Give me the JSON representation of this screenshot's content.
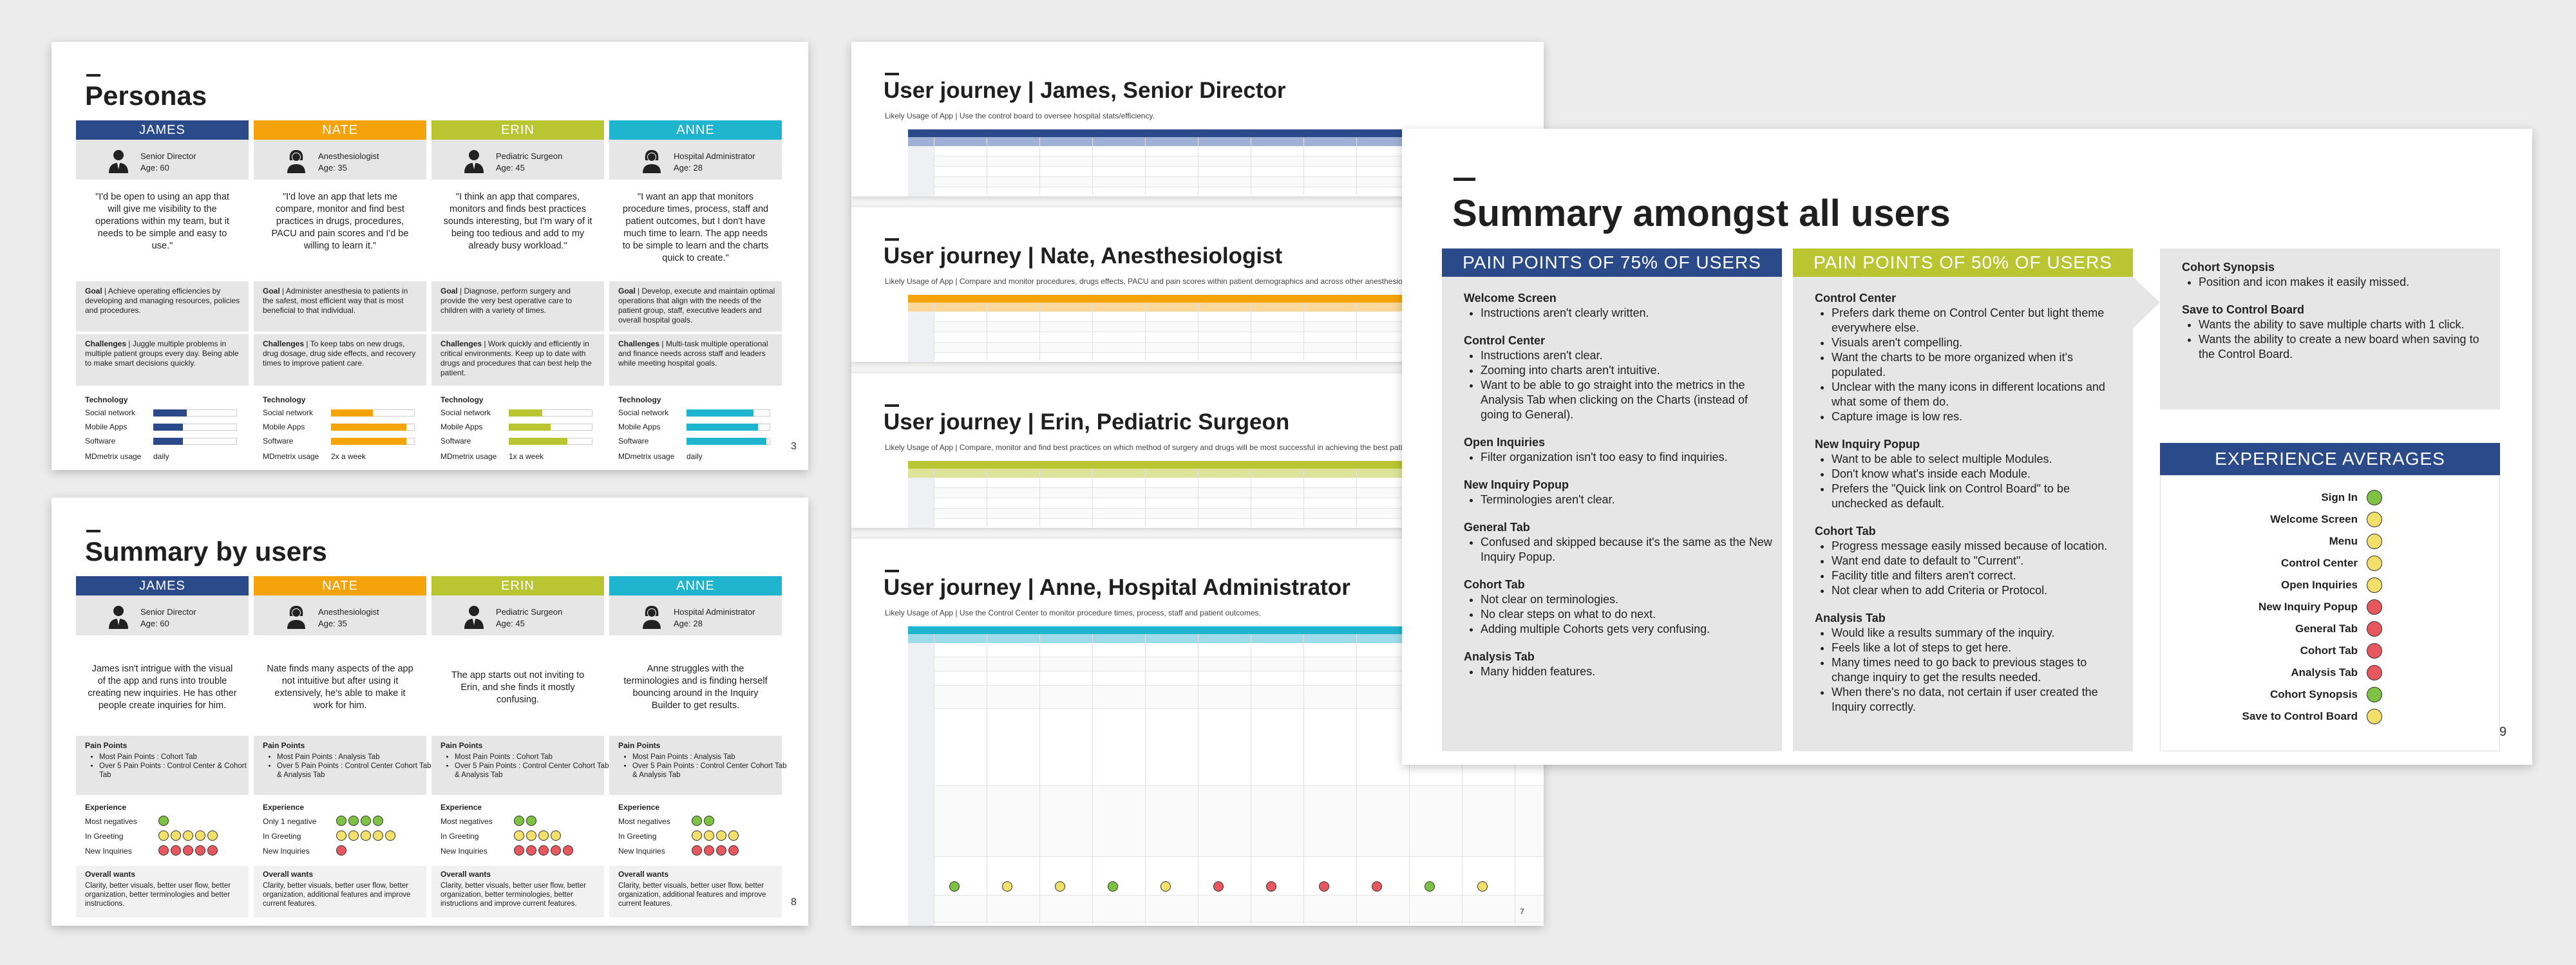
{
  "slide3": {
    "title": "Personas",
    "page": "3",
    "personas": [
      {
        "name": "JAMES",
        "role": "Senior Director",
        "age": "Age: 60",
        "color": "#2a4a8a",
        "quote": "\"I'd be open to using an app that will give me visibility to the operations within my team, but it needs to be simple and easy to use.\"",
        "goal_label": "Goal",
        "goal": "Achieve operating efficiencies by developing and managing resources, policies and procedures.",
        "ch_label": "Challenges",
        "challenges": "Juggle multiple problems in multiple patient groups every day. Being able to make smart decisions quickly.",
        "tech_label": "Technology",
        "tech": [
          {
            "k": "Social network",
            "v": 0.4
          },
          {
            "k": "Mobile Apps",
            "v": 0.35
          },
          {
            "k": "Software",
            "v": 0.35
          }
        ],
        "md_label": "MDmetrix usage",
        "md": "daily"
      },
      {
        "name": "NATE",
        "role": "Anesthesiologist",
        "age": "Age: 35",
        "color": "#f5a30a",
        "quote": "\"I'd love an app that lets me compare, monitor and find best practices in drugs, procedures, PACU and pain scores and I'd be willing to learn it.\"",
        "goal_label": "Goal",
        "goal": "Administer anesthesia to patients in the safest, most efficient way that is most beneficial to that individual.",
        "ch_label": "Challenges",
        "challenges": "To keep tabs on new drugs, drug dosage, drug side effects, and recovery times to improve patient care.",
        "tech_label": "Technology",
        "tech": [
          {
            "k": "Social network",
            "v": 0.5
          },
          {
            "k": "Mobile Apps",
            "v": 0.9
          },
          {
            "k": "Software",
            "v": 0.9
          }
        ],
        "md_label": "MDmetrix usage",
        "md": "2x a week"
      },
      {
        "name": "ERIN",
        "role": "Pediatric Surgeon",
        "age": "Age: 45",
        "color": "#b9c531",
        "quote": "\"I think an app that compares, monitors and finds best practices sounds interesting, but I'm wary of it being too tedious and add to my already busy workload.\"",
        "goal_label": "Goal",
        "goal": "Diagnose, perform surgery and provide the very best operative care to children with a variety of times.",
        "ch_label": "Challenges",
        "challenges": "Work quickly and efficiently in critical environments. Keep up to date with drugs and procedures that can best help the patient.",
        "tech_label": "Technology",
        "tech": [
          {
            "k": "Social network",
            "v": 0.4
          },
          {
            "k": "Mobile Apps",
            "v": 0.5
          },
          {
            "k": "Software",
            "v": 0.7
          }
        ],
        "md_label": "MDmetrix usage",
        "md": "1x a week"
      },
      {
        "name": "ANNE",
        "role": "Hospital Administrator",
        "age": "Age: 28",
        "color": "#20b5cf",
        "quote": "\"I want an app that monitors procedure times, process, staff and patient outcomes, but I don't have much time to learn. The app needs to be simple to learn and the charts quick to create.\"",
        "goal_label": "Goal",
        "goal": "Develop, execute and maintain optimal operations that align with the needs of the patient group, staff, executive leaders and overall hospital goals.",
        "ch_label": "Challenges",
        "challenges": "Multi-task multiple operational and finance needs across staff and leaders while meeting hospital goals.",
        "tech_label": "Technology",
        "tech": [
          {
            "k": "Social network",
            "v": 0.8
          },
          {
            "k": "Mobile Apps",
            "v": 0.85
          },
          {
            "k": "Software",
            "v": 0.95
          }
        ],
        "md_label": "MDmetrix usage",
        "md": "daily"
      }
    ]
  },
  "slide8": {
    "title": "Summary by users",
    "page": "8",
    "users": [
      {
        "name": "JAMES",
        "role": "Senior Director",
        "age": "Age: 60",
        "color": "#2a4a8a",
        "summary": "James isn't intrigue with the visual of the app and runs into trouble creating new inquiries. He has other people create inquiries for him.",
        "pp_label": "Pain Points",
        "pp": [
          "Most Pain Points : Cohort Tab",
          "Over 5 Pain Points : Control Center & Cohort Tab"
        ],
        "exp_label": "Experience",
        "exp": [
          {
            "k": "Most negatives",
            "f": [
              "g"
            ]
          },
          {
            "k": "In Greeting",
            "f": [
              "y",
              "y",
              "y",
              "y",
              "y"
            ]
          },
          {
            "k": "New Inquiries",
            "f": [
              "r",
              "r",
              "r",
              "r",
              "r"
            ]
          }
        ],
        "ow_label": "Overall wants",
        "ow": "Clarity, better visuals, better user flow, better organization, better terminologies and better instructions."
      },
      {
        "name": "NATE",
        "role": "Anesthesiologist",
        "age": "Age: 35",
        "color": "#f5a30a",
        "summary": "Nate finds many aspects of the app not intuitive but after using it extensively, he's able to make it work for him.",
        "pp_label": "Pain Points",
        "pp": [
          "Most Pain Points : Analysis Tab",
          "Over 5 Pain Points : Control Center Cohort Tab & Analysis Tab"
        ],
        "exp_label": "Experience",
        "exp": [
          {
            "k": "Only 1 negative",
            "f": [
              "g",
              "g",
              "g",
              "g"
            ]
          },
          {
            "k": "In Greeting",
            "f": [
              "y",
              "y",
              "y",
              "y",
              "y"
            ]
          },
          {
            "k": "New Inquiries",
            "f": [
              "r"
            ]
          }
        ],
        "ow_label": "Overall wants",
        "ow": "Clarity, better visuals, better user flow, better organization, additional features and improve current features."
      },
      {
        "name": "ERIN",
        "role": "Pediatric Surgeon",
        "age": "Age: 45",
        "color": "#b9c531",
        "summary": "The app starts out not inviting to Erin, and she finds it mostly confusing.",
        "pp_label": "Pain Points",
        "pp": [
          "Most Pain Points : Cohort Tab",
          "Over 5 Pain Points : Control Center Cohort Tab & Analysis Tab"
        ],
        "exp_label": "Experience",
        "exp": [
          {
            "k": "Most negatives",
            "f": [
              "g",
              "g"
            ]
          },
          {
            "k": "In Greeting",
            "f": [
              "y",
              "y",
              "y",
              "y"
            ]
          },
          {
            "k": "New Inquiries",
            "f": [
              "r",
              "r",
              "r",
              "r",
              "r"
            ]
          }
        ],
        "ow_label": "Overall wants",
        "ow": "Clarity, better visuals, better user flow, better organization, better terminologies, better instructions and improve current features."
      },
      {
        "name": "ANNE",
        "role": "Hospital Administrator",
        "age": "Age: 28",
        "color": "#20b5cf",
        "summary": "Anne struggles with the terminologies and is finding herself bouncing around in the Inquiry Builder to get results.",
        "pp_label": "Pain Points",
        "pp": [
          "Most Pain Points : Analysis Tab",
          "Over 5 Pain Points : Control Center Cohort Tab & Analysis Tab"
        ],
        "exp_label": "Experience",
        "exp": [
          {
            "k": "Most negatives",
            "f": [
              "g",
              "g"
            ]
          },
          {
            "k": "In Greeting",
            "f": [
              "y",
              "y",
              "y",
              "y"
            ]
          },
          {
            "k": "New Inquiries",
            "f": [
              "r",
              "r",
              "r",
              "r"
            ]
          }
        ],
        "ow_label": "Overall wants",
        "ow": "Clarity, better visuals, better user flow, better organization, additional features and improve current features."
      }
    ]
  },
  "journeys": [
    {
      "title": "User journey | James, Senior Director",
      "subtitle": "Likely Usage of App | Use the control board to oversee hospital stats/efficiency.",
      "color": "#2a4a8a",
      "header_fill": "#9fb1d6"
    },
    {
      "title": "User journey | Nate, Anesthesiologist",
      "subtitle": "Likely Usage of App | Compare and monitor procedures, drugs effects, PACU and pain scores within patient demographics and across other anesthesiologists to apply to personal growth and knowledge.",
      "color": "#f5a30a",
      "header_fill": "#fbd79a"
    },
    {
      "title": "User journey | Erin, Pediatric Surgeon",
      "subtitle": "Likely Usage of App | Compare, monitor and find best practices on which method of surgery and drugs will be most successful in achieving the best patient outcome.",
      "color": "#b9c531",
      "header_fill": "#dde49a"
    },
    {
      "title": "User journey | Anne, Hospital Administrator",
      "subtitle": "Likely Usage of App | Use the Control Center to monitor procedure times, process, staff and patient outcomes.",
      "color": "#20b5cf",
      "header_fill": "#9fdceb",
      "page": "7"
    }
  ],
  "slide9": {
    "title": "Summary amongst all users",
    "page": "9",
    "col75": {
      "header": "PAIN POINTS OF 75% OF USERS",
      "color": "#2a4a8a",
      "groups": [
        {
          "title": "Welcome Screen",
          "items": [
            "Instructions aren't clearly written."
          ]
        },
        {
          "title": "Control Center",
          "items": [
            "Instructions aren't clear.",
            "Zooming into charts aren't intuitive.",
            "Want to be able to go straight into the metrics in the Analysis Tab when clicking on the Charts (instead of going to General)."
          ]
        },
        {
          "title": "Open Inquiries",
          "items": [
            "Filter organization isn't too easy to find inquiries."
          ]
        },
        {
          "title": "New Inquiry Popup",
          "items": [
            "Terminologies aren't clear."
          ]
        },
        {
          "title": "General Tab",
          "items": [
            "Confused and skipped because it's the same as the New Inquiry Popup."
          ]
        },
        {
          "title": "Cohort Tab",
          "items": [
            "Not clear on terminologies.",
            "No clear steps on what to do next.",
            "Adding multiple Cohorts gets very confusing."
          ]
        },
        {
          "title": "Analysis Tab",
          "items": [
            "Many hidden features."
          ]
        }
      ]
    },
    "col50": {
      "header": "PAIN POINTS OF 50% OF USERS",
      "color": "#b9c531",
      "groups": [
        {
          "title": "Control Center",
          "items": [
            "Prefers dark theme on Control Center but light theme everywhere else.",
            "Visuals aren't compelling.",
            "Want the charts to be more organized when it's populated.",
            "Unclear with the many icons in different locations and what some of them do.",
            "Capture image is low res."
          ]
        },
        {
          "title": "New Inquiry Popup",
          "items": [
            "Want to be able to select multiple Modules.",
            "Don't know what's inside each Module.",
            "Prefers the \"Quick link on Control Board\" to be unchecked as default."
          ]
        },
        {
          "title": "Cohort Tab",
          "items": [
            "Progress message easily missed because of location.",
            "Want end date to default to \"Current\".",
            "Facility title and filters aren't correct.",
            "Not clear when to add Criteria or Protocol."
          ]
        },
        {
          "title": "Analysis Tab",
          "items": [
            "Would like a results summary of the inquiry.",
            "Feels like a lot of steps to get here.",
            "Many times need to go back to previous stages to change inquiry to get the results needed.",
            "When there's no data, not certain if user created the Inquiry correctly."
          ]
        }
      ]
    },
    "col25": {
      "groups": [
        {
          "title": "Cohort Synopsis",
          "items": [
            "Position and icon makes it easily missed."
          ]
        },
        {
          "title": "Save to Control Board",
          "items": [
            "Wants the ability to save multiple charts with 1 click.",
            "Wants the ability to create a new board when saving to the Control Board."
          ]
        }
      ]
    },
    "experience": {
      "header": "EXPERIENCE AVERAGES",
      "color": "#2a4a8a",
      "rows": [
        {
          "k": "Sign In",
          "f": "g"
        },
        {
          "k": "Welcome Screen",
          "f": "y"
        },
        {
          "k": "Menu",
          "f": "y"
        },
        {
          "k": "Control Center",
          "f": "y"
        },
        {
          "k": "Open Inquiries",
          "f": "y"
        },
        {
          "k": "New Inquiry Popup",
          "f": "r"
        },
        {
          "k": "General Tab",
          "f": "r"
        },
        {
          "k": "Cohort Tab",
          "f": "r"
        },
        {
          "k": "Analysis Tab",
          "f": "r"
        },
        {
          "k": "Cohort Synopsis",
          "f": "g"
        },
        {
          "k": "Save to Control Board",
          "f": "y"
        }
      ]
    }
  }
}
